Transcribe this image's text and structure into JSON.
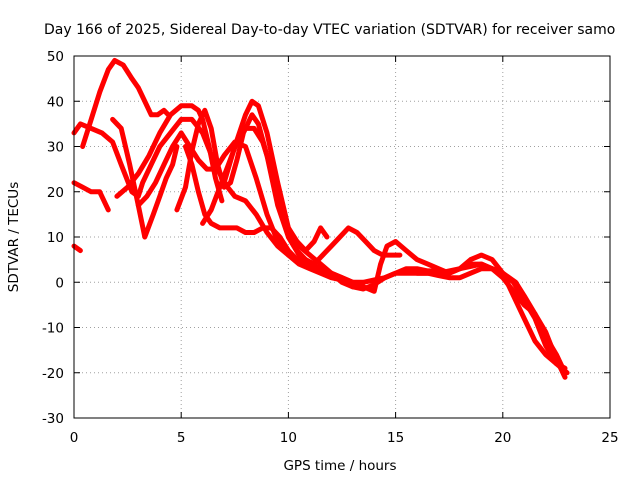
{
  "chart_data": {
    "type": "line",
    "title": "Day 166 of 2025, Sidereal Day-to-day VTEC variation (SDTVAR) for receiver samo",
    "xlabel": "GPS time / hours",
    "ylabel": "SDTVAR / TECUs",
    "xlim": [
      0,
      25
    ],
    "ylim": [
      -30,
      50
    ],
    "xticks": [
      0,
      5,
      10,
      15,
      20,
      25
    ],
    "yticks": [
      -30,
      -20,
      -10,
      0,
      10,
      20,
      30,
      40,
      50
    ],
    "grid": true,
    "series_color": "#ff0000",
    "series": [
      {
        "name": "trace-1",
        "x": [
          0,
          0.3,
          0.8,
          1.3,
          1.8,
          2.2,
          2.7,
          3.0,
          3.2,
          3.6,
          4.0,
          4.5,
          5.0,
          5.5,
          6.0,
          6.5,
          7.0,
          7.5,
          8.0,
          8.5,
          9.0,
          9.5,
          10.0,
          10.5,
          11.0,
          11.5,
          12.0,
          12.5,
          13.0,
          13.5,
          14.0,
          14.5,
          15.0,
          15.5,
          16.0,
          16.5,
          17.0,
          17.5,
          18.0,
          18.5,
          19.0,
          19.5,
          20.0,
          20.3,
          20.6,
          21.0,
          21.5,
          22.0,
          22.5,
          22.8
        ],
        "y": [
          33,
          35,
          34,
          33,
          31,
          26,
          20,
          19,
          22,
          26,
          30,
          33,
          36,
          36,
          33,
          27,
          22,
          19,
          18,
          15,
          11,
          8,
          6,
          4,
          3,
          2,
          1,
          0.5,
          -1,
          -1.5,
          -0.5,
          1,
          2,
          2,
          2,
          2,
          2,
          2.5,
          3,
          3.5,
          4,
          3,
          2,
          1,
          0,
          -3,
          -7,
          -12,
          -16,
          -19
        ]
      },
      {
        "name": "trace-2",
        "x": [
          0.4,
          0.8,
          1.2,
          1.6,
          1.9,
          2.3,
          2.7,
          3.0,
          3.3,
          3.6,
          3.9,
          4.2,
          4.4
        ],
        "y": [
          30,
          36,
          42,
          47,
          49,
          48,
          45,
          43,
          40,
          37,
          37,
          38,
          37
        ]
      },
      {
        "name": "trace-3",
        "x": [
          0,
          0.4,
          0.8,
          1.2,
          1.6
        ],
        "y": [
          22,
          21,
          20,
          20,
          16
        ]
      },
      {
        "name": "trace-4",
        "x": [
          0,
          0.3
        ],
        "y": [
          8,
          7
        ]
      },
      {
        "name": "trace-5",
        "x": [
          1.8,
          2.2,
          2.6,
          3.0,
          3.3,
          3.7,
          4.0,
          4.3,
          4.6,
          4.8
        ],
        "y": [
          36,
          34,
          26,
          17,
          10,
          15,
          19,
          23,
          26,
          30
        ]
      },
      {
        "name": "trace-6",
        "x": [
          2.0,
          2.5,
          3.0,
          3.5,
          4.0,
          4.5,
          5.0,
          5.5,
          5.8,
          6.0,
          6.3,
          6.6,
          6.9
        ],
        "y": [
          19,
          21,
          24,
          28,
          33,
          37,
          39,
          39,
          38,
          36,
          30,
          23,
          18
        ]
      },
      {
        "name": "trace-7",
        "x": [
          3.0,
          3.4,
          3.8,
          4.2,
          4.6,
          5.0,
          5.4,
          5.8,
          6.2,
          6.6,
          7.0,
          7.5,
          8.0,
          8.5,
          9.0,
          9.5,
          10.0,
          10.5,
          11.0,
          11.5,
          12.0,
          12.5,
          13.0,
          13.5,
          14.0,
          14.5,
          15.0,
          15.5,
          16.0,
          16.5,
          17.0,
          17.5,
          18.0,
          18.5,
          19.0,
          19.5,
          20.0,
          20.5,
          21.0,
          21.5,
          22.0,
          22.5,
          22.9
        ],
        "y": [
          17,
          19,
          22,
          26,
          30,
          33,
          30,
          27,
          25,
          25,
          28,
          31,
          30,
          23,
          15,
          9,
          6,
          5,
          4,
          3,
          2,
          1,
          0,
          0,
          0.5,
          1,
          2,
          3,
          3,
          2.5,
          2.5,
          2,
          3,
          4,
          4,
          3,
          1,
          -2,
          -5,
          -7,
          -11,
          -17,
          -21
        ]
      },
      {
        "name": "trace-8",
        "x": [
          4.8,
          5.2,
          5.5,
          5.8,
          6.1,
          6.4,
          6.7,
          7.0,
          7.3,
          7.6,
          7.9,
          8.3,
          8.6,
          9.0,
          9.5,
          10.0,
          10.5,
          11.0,
          11.5,
          12.0,
          12.5,
          13.0,
          13.5
        ],
        "y": [
          16,
          21,
          29,
          35,
          38,
          34,
          26,
          21,
          22,
          27,
          33,
          37,
          35,
          28,
          17,
          10,
          6,
          4,
          3,
          2,
          1,
          0,
          -1
        ]
      },
      {
        "name": "trace-9",
        "x": [
          5.2,
          5.5,
          5.8,
          6.1,
          6.4,
          6.8,
          7.2,
          7.6,
          8.0,
          8.4,
          8.8,
          9.2,
          9.6,
          10.0,
          10.4,
          10.8,
          11.2,
          11.6,
          12.0,
          12.4,
          12.8,
          13.2,
          13.6,
          14.0,
          14.4,
          14.8,
          15.2
        ],
        "y": [
          30,
          26,
          20,
          15,
          13,
          12,
          12,
          12,
          11,
          11,
          12,
          12,
          10,
          7,
          5,
          5,
          4,
          6,
          8,
          10,
          12,
          11,
          9,
          7,
          6,
          6,
          6
        ]
      },
      {
        "name": "trace-10",
        "x": [
          6.0,
          6.4,
          6.8,
          7.2,
          7.6,
          8.0,
          8.4,
          8.8,
          9.2,
          9.6,
          10.0,
          10.4,
          10.8,
          11.2,
          11.5,
          11.8
        ],
        "y": [
          13,
          16,
          21,
          26,
          31,
          34,
          34,
          31,
          25,
          17,
          12,
          9,
          7,
          9,
          12,
          10
        ]
      },
      {
        "name": "trace-11",
        "x": [
          7.0,
          7.5,
          8.0,
          8.3,
          8.6,
          9.0,
          9.5,
          10.0,
          10.5,
          11.0,
          11.5,
          12.0,
          12.5,
          13.0,
          13.5,
          14.0,
          14.3,
          14.6,
          15.0,
          15.5,
          16.0,
          16.5,
          17.0,
          17.5,
          18.0,
          18.5,
          19.0,
          19.5,
          20.0,
          20.5,
          21.0,
          21.5,
          22.0,
          22.5,
          22.9
        ],
        "y": [
          22,
          30,
          37,
          40,
          39,
          33,
          22,
          12,
          8,
          6,
          4,
          2,
          0,
          -1,
          -1,
          -2,
          4,
          8,
          9,
          7,
          5,
          4,
          3,
          2,
          3,
          5,
          6,
          5,
          2,
          -3,
          -8,
          -13,
          -16,
          -18,
          -19
        ]
      },
      {
        "name": "trace-12",
        "x": [
          10.0,
          10.4,
          10.8,
          11.2
        ],
        "y": [
          10,
          7,
          5,
          3
        ]
      },
      {
        "name": "trace-13",
        "x": [
          16.0,
          16.5,
          17.0,
          17.5,
          18.0,
          18.5,
          19.0,
          19.5,
          20.0,
          20.5,
          21.0,
          21.5,
          22.0,
          22.5,
          23.0
        ],
        "y": [
          2,
          2,
          1.5,
          1,
          1,
          2,
          3,
          3,
          2,
          0,
          -4,
          -8,
          -14,
          -18,
          -20
        ]
      }
    ]
  }
}
